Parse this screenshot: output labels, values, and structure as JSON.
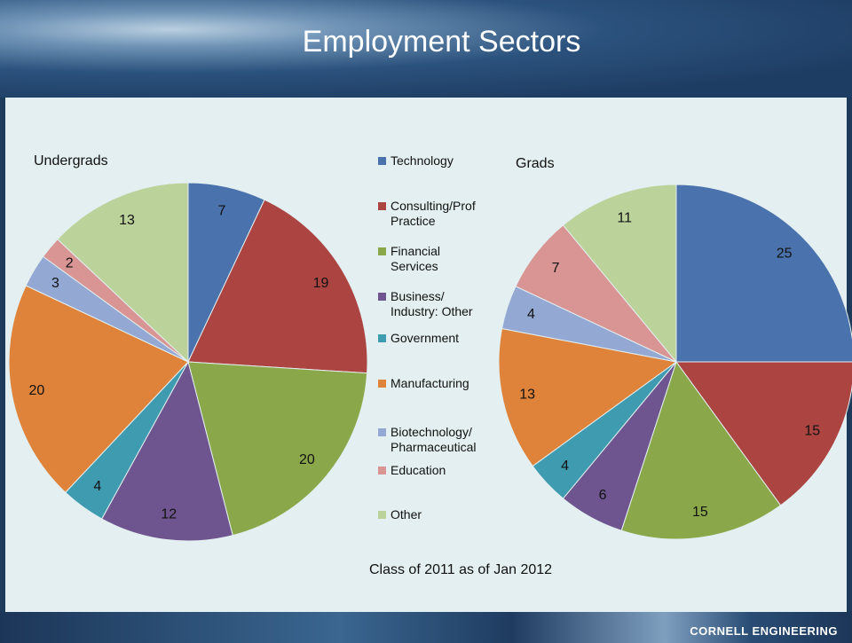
{
  "title": "Employment Sectors",
  "caption": "Class of 2011 as of Jan 2012",
  "footer": "CORNELL ENGINEERING",
  "chart_data": [
    {
      "type": "pie",
      "title": "Undergrads",
      "categories": [
        "Technology",
        "Consulting/Prof Practice",
        "Financial Services",
        "Business/ Industry: Other",
        "Government",
        "Manufacturing",
        "Biotechnology/ Pharmaceutical",
        "Education",
        "Other"
      ],
      "colors": [
        "#4a72ac",
        "#ac4542",
        "#8aa84a",
        "#6e5590",
        "#3f9bb0",
        "#df833a",
        "#93a8d3",
        "#d99593",
        "#bcd29b"
      ],
      "values": [
        7,
        19,
        20,
        12,
        4,
        20,
        3,
        2,
        13
      ]
    },
    {
      "type": "pie",
      "title": "Grads",
      "values": [
        25,
        15,
        15,
        6,
        4,
        13,
        4,
        7,
        11
      ]
    }
  ]
}
